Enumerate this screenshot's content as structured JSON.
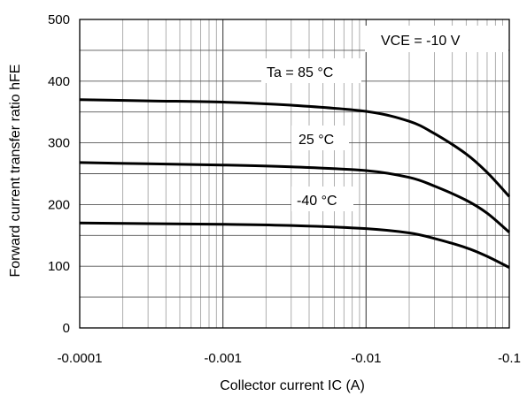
{
  "chart_data": {
    "type": "line",
    "xscale": "log",
    "xlim": [
      -0.0001,
      -0.1
    ],
    "ylim": [
      0,
      500
    ],
    "grid": true,
    "xlabel": "Collector current IC (A)",
    "ylabel": "Forward current transfer ratio hFE",
    "x_ticks": [
      "-0.0001",
      "-0.001",
      "-0.01",
      "-0.1"
    ],
    "y_ticks": [
      "0",
      "100",
      "200",
      "300",
      "400",
      "500"
    ],
    "annotations": [
      "VCE = -10 V",
      "Ta = 85 °C",
      "25 °C",
      "-40 °C"
    ],
    "series": [
      {
        "name": "Ta = 85 °C",
        "x": [
          -0.0001,
          -0.0003,
          -0.001,
          -0.003,
          -0.01,
          -0.02,
          -0.03,
          -0.05,
          -0.07,
          -0.1
        ],
        "y": [
          370,
          368,
          366,
          361,
          351,
          335,
          315,
          282,
          252,
          213
        ]
      },
      {
        "name": "25 °C",
        "x": [
          -0.0001,
          -0.0003,
          -0.001,
          -0.003,
          -0.01,
          -0.02,
          -0.03,
          -0.05,
          -0.07,
          -0.1
        ],
        "y": [
          268,
          266,
          264,
          261,
          255,
          244,
          230,
          207,
          186,
          155
        ]
      },
      {
        "name": "-40 °C",
        "x": [
          -0.0001,
          -0.0003,
          -0.001,
          -0.003,
          -0.01,
          -0.02,
          -0.03,
          -0.05,
          -0.07,
          -0.1
        ],
        "y": [
          170,
          169,
          168,
          166,
          161,
          154,
          145,
          130,
          116,
          98
        ]
      }
    ]
  }
}
